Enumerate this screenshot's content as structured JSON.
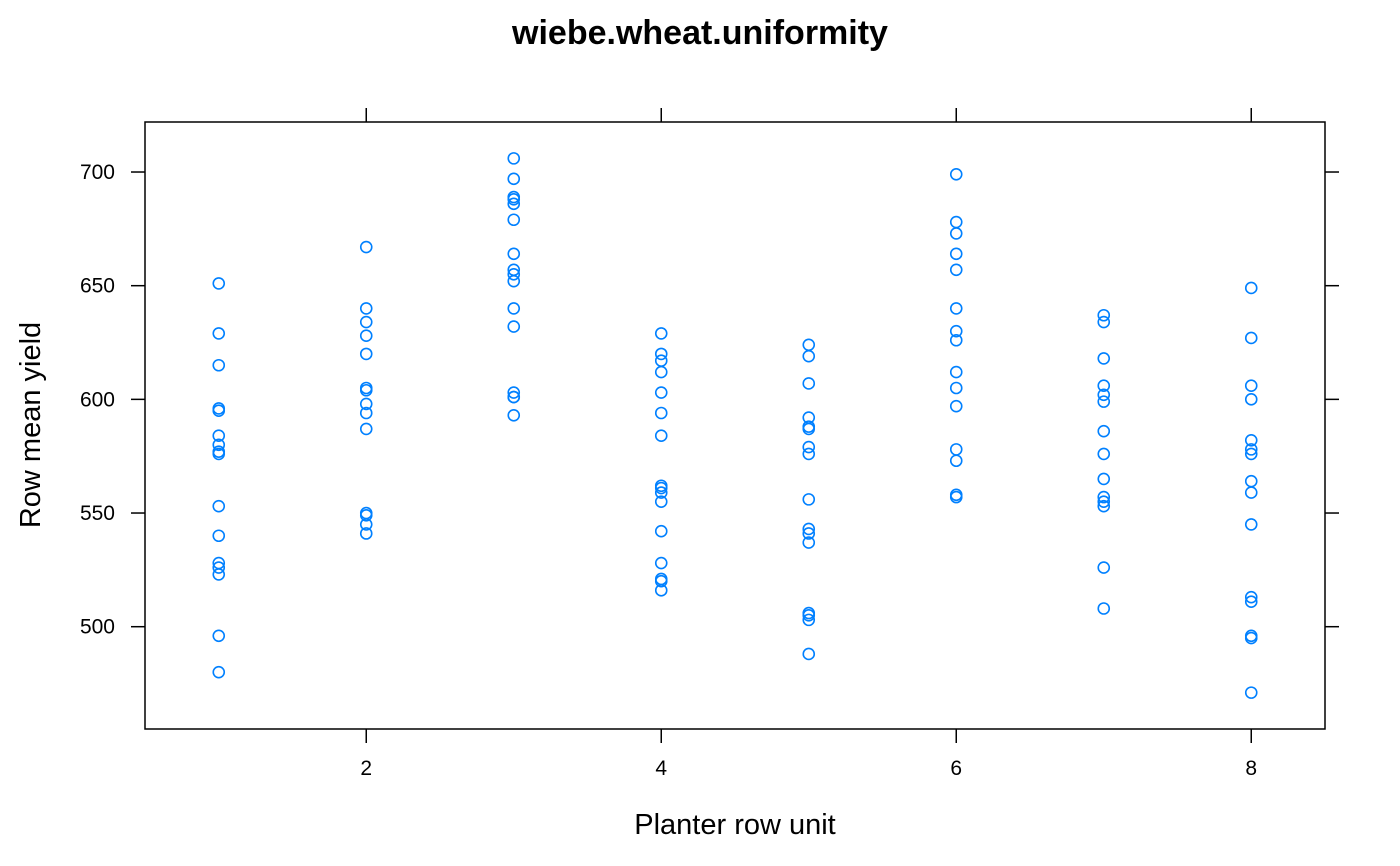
{
  "chart_data": {
    "type": "scatter",
    "title": "wiebe.wheat.uniformity",
    "xlabel": "Planter row unit",
    "ylabel": "Row mean yield",
    "xlim": [
      0.5,
      8.5
    ],
    "ylim": [
      455,
      722
    ],
    "xticks": [
      2,
      4,
      6,
      8
    ],
    "yticks": [
      500,
      550,
      600,
      650,
      700
    ],
    "grid": false,
    "point_color": "#0080ff",
    "points": {
      "1": [
        651,
        629,
        615,
        596,
        595,
        584,
        580,
        577,
        576,
        553,
        540,
        528,
        526,
        523,
        496,
        480
      ],
      "2": [
        667,
        640,
        634,
        628,
        620,
        605,
        604,
        598,
        594,
        587,
        550,
        549,
        545,
        541
      ],
      "3": [
        706,
        697,
        689,
        688,
        686,
        679,
        664,
        657,
        655,
        652,
        640,
        632,
        603,
        601,
        601,
        593
      ],
      "4": [
        629,
        620,
        617,
        612,
        603,
        594,
        584,
        562,
        561,
        559,
        555,
        542,
        528,
        521,
        520,
        516
      ],
      "5": [
        624,
        619,
        607,
        592,
        588,
        587,
        579,
        576,
        556,
        543,
        541,
        537,
        506,
        505,
        503,
        488
      ],
      "6": [
        699,
        678,
        673,
        664,
        657,
        640,
        630,
        626,
        612,
        605,
        597,
        578,
        573,
        558,
        557
      ],
      "7": [
        637,
        634,
        618,
        606,
        602,
        599,
        586,
        576,
        565,
        557,
        555,
        553,
        526,
        508
      ],
      "8": [
        649,
        627,
        606,
        600,
        582,
        578,
        576,
        564,
        559,
        545,
        513,
        511,
        496,
        495,
        471
      ]
    }
  }
}
